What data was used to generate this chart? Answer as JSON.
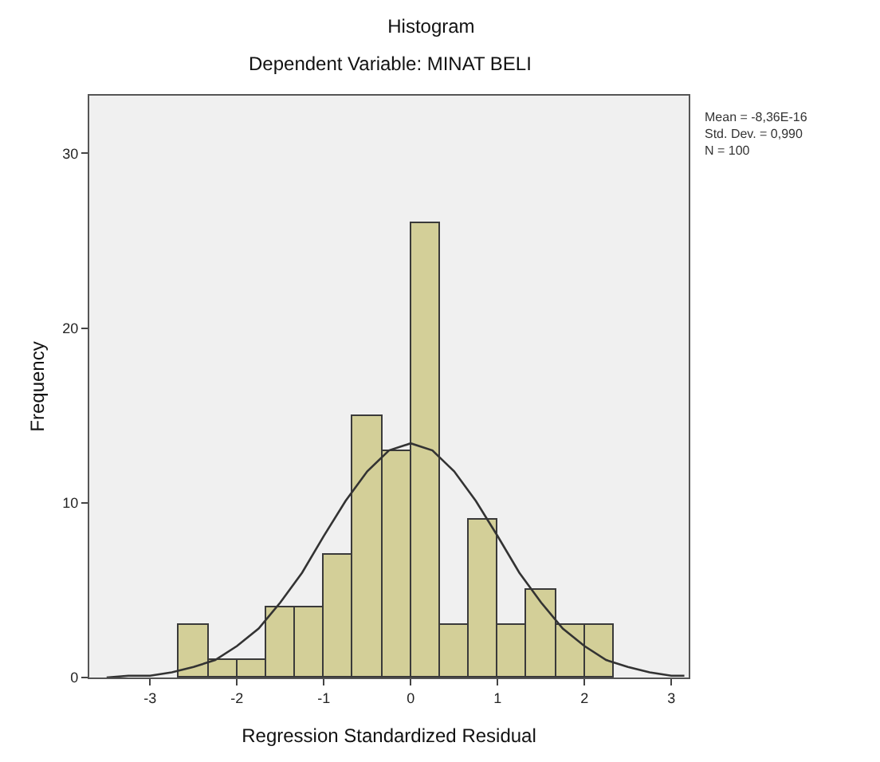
{
  "chart_data": {
    "type": "histogram",
    "title": "Histogram",
    "subtitle": "Dependent Variable: MINAT BELI",
    "xlabel": "Regression Standardized Residual",
    "ylabel": "Frequency",
    "bins": [
      -2.67,
      -2.33,
      -2,
      -1.67,
      -1.33,
      -1,
      -0.67,
      -0.33,
      0,
      0.33,
      0.67,
      1,
      1.33,
      1.67,
      2,
      2.33
    ],
    "values": [
      3,
      1,
      1,
      4,
      4,
      7,
      15,
      13,
      26,
      3,
      9,
      3,
      5,
      3,
      3
    ],
    "color": "#d3cf98",
    "series": [
      {
        "type": "line",
        "color": "#333333",
        "x": [
          -3.5,
          -3.25,
          -3,
          -2.75,
          -2.5,
          -2.25,
          -2,
          -1.75,
          -1.5,
          -1.25,
          -1,
          -0.75,
          -0.5,
          -0.25,
          0,
          0.25,
          0.5,
          0.75,
          1,
          1.25,
          1.5,
          1.75,
          2,
          2.25,
          2.5,
          2.75,
          3,
          3.15
        ],
        "values": [
          0,
          0.1,
          0.1,
          0.3,
          0.6,
          1,
          1.8,
          2.8,
          4.3,
          6,
          8.1,
          10.1,
          11.8,
          13,
          13.4,
          13,
          11.8,
          10.1,
          8.1,
          6,
          4.3,
          2.8,
          1.8,
          1,
          0.6,
          0.3,
          0.1,
          0.1
        ]
      }
    ],
    "annotations": [
      "Mean = -8,36E-16\nStd. Dev. = 0,990\nN = 100"
    ],
    "xlim": [
      -3.7,
      3.2
    ],
    "xticks": [
      -3,
      -2,
      -1,
      0,
      1,
      2,
      3
    ],
    "ylim": [
      0,
      33.3
    ],
    "yticks": [
      0,
      10,
      20,
      30
    ],
    "grid": false
  }
}
